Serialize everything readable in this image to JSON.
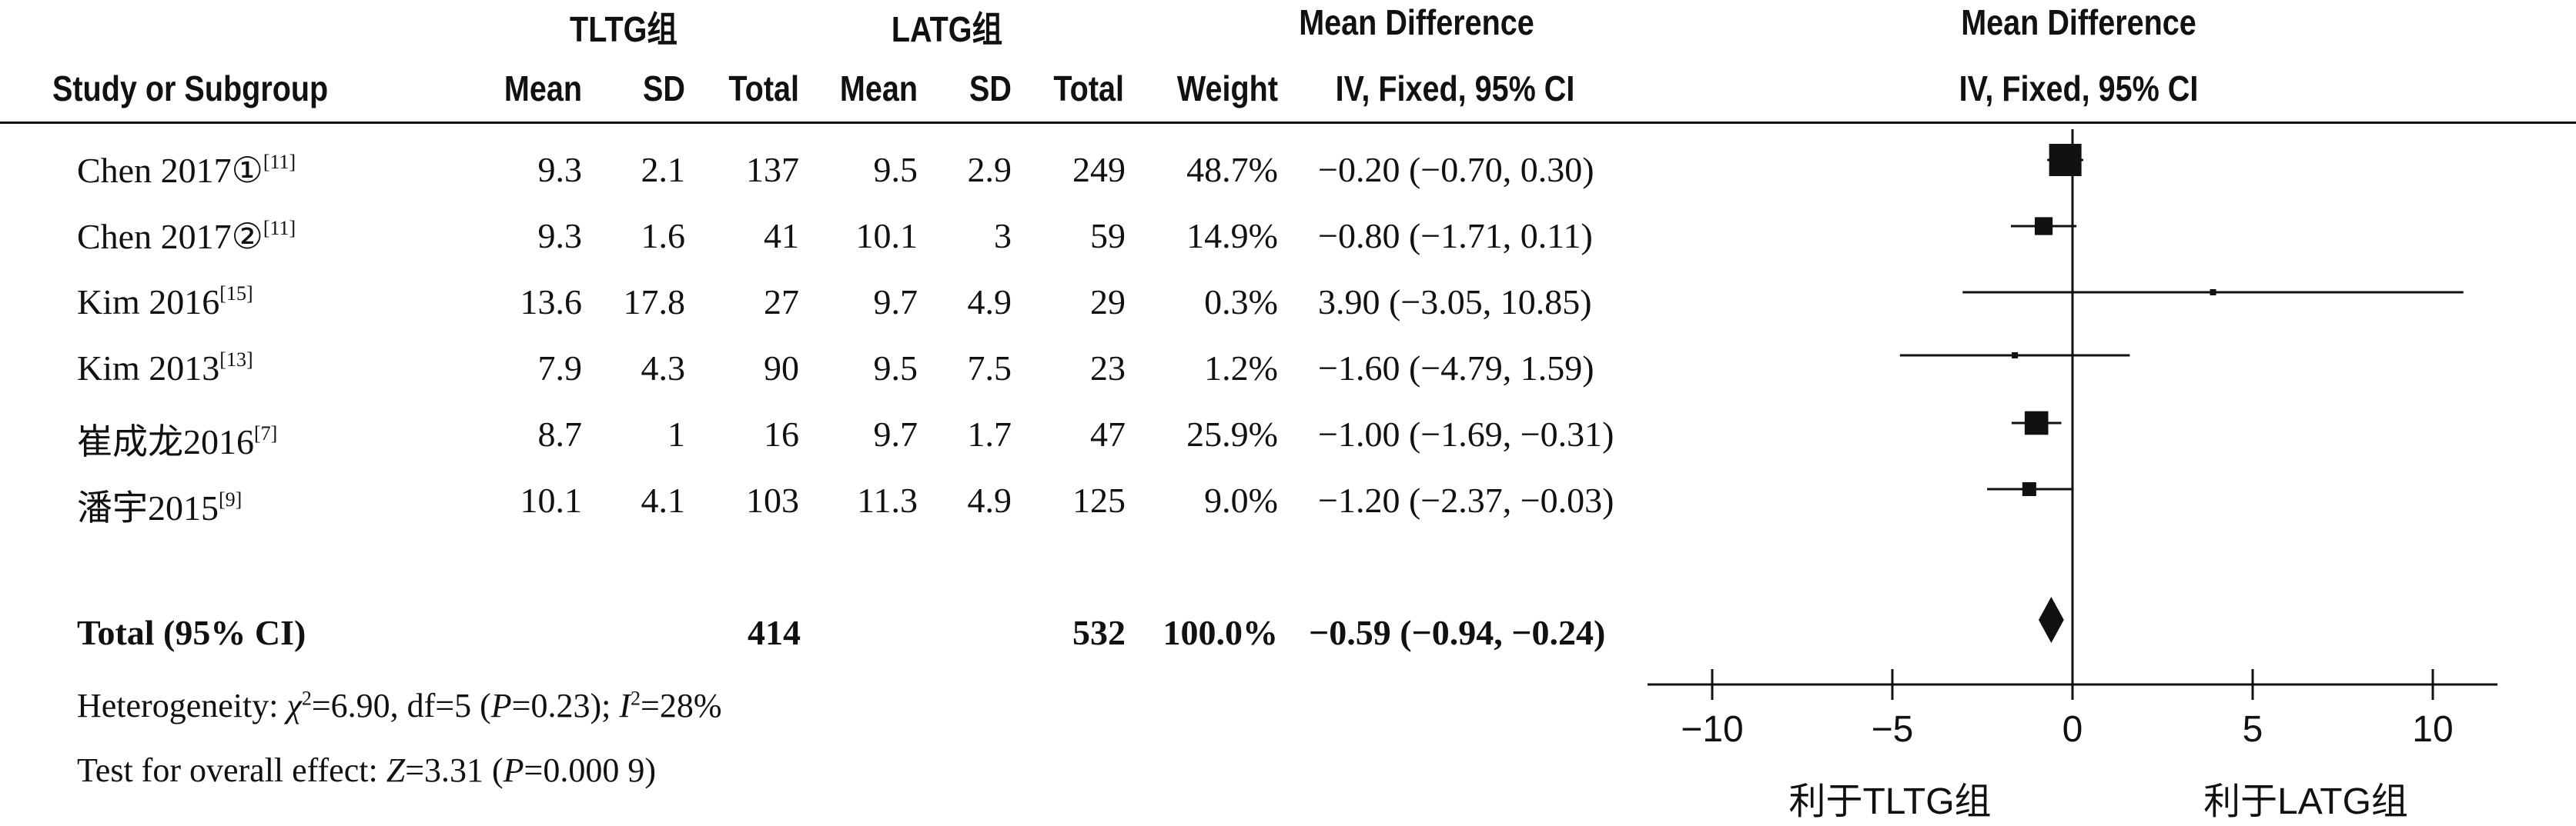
{
  "headers": {
    "group1": "TLTG组",
    "group2": "LATG组",
    "md_left": "Mean Difference",
    "md_right": "Mean Difference",
    "study_col": "Study or Subgroup",
    "mean1": "Mean",
    "sd1": "SD",
    "total1": "Total",
    "mean2": "Mean",
    "sd2": "SD",
    "total2": "Total",
    "weight": "Weight",
    "ci_left": "IV, Fixed, 95% CI",
    "ci_right": "IV, Fixed, 95% CI"
  },
  "studies": [
    {
      "name": "Chen 2017①",
      "ref": "[11]",
      "mean1": "9.3",
      "sd1": "2.1",
      "total1": "137",
      "mean2": "9.5",
      "sd2": "2.9",
      "total2": "249",
      "weight": "48.7%",
      "ci_text": "−0.20 (−0.70, 0.30)"
    },
    {
      "name": "Chen 2017②",
      "ref": "[11]",
      "mean1": "9.3",
      "sd1": "1.6",
      "total1": "41",
      "mean2": "10.1",
      "sd2": "3",
      "total2": "59",
      "weight": "14.9%",
      "ci_text": "−0.80 (−1.71, 0.11)"
    },
    {
      "name": "Kim 2016",
      "ref": "[15]",
      "mean1": "13.6",
      "sd1": "17.8",
      "total1": "27",
      "mean2": "9.7",
      "sd2": "4.9",
      "total2": "29",
      "weight": "0.3%",
      "ci_text": "3.90 (−3.05, 10.85)"
    },
    {
      "name": "Kim 2013",
      "ref": "[13]",
      "mean1": "7.9",
      "sd1": "4.3",
      "total1": "90",
      "mean2": "9.5",
      "sd2": "7.5",
      "total2": "23",
      "weight": "1.2%",
      "ci_text": "−1.60 (−4.79, 1.59)"
    },
    {
      "name": "崔成龙2016",
      "ref": "[7]",
      "mean1": "8.7",
      "sd1": "1",
      "total1": "16",
      "mean2": "9.7",
      "sd2": "1.7",
      "total2": "47",
      "weight": "25.9%",
      "ci_text": "−1.00 (−1.69, −0.31)"
    },
    {
      "name": "潘宇2015",
      "ref": "[9]",
      "mean1": "10.1",
      "sd1": "4.1",
      "total1": "103",
      "mean2": "11.3",
      "sd2": "4.9",
      "total2": "125",
      "weight": "9.0%",
      "ci_text": "−1.20 (−2.37, −0.03)"
    }
  ],
  "total": {
    "label": "Total (95% CI)",
    "total1": "414",
    "total2": "532",
    "weight": "100.0%",
    "ci_text": "−0.59 (−0.94, −0.24)"
  },
  "footer": {
    "het_prefix": "Heterogeneity: ",
    "chi": "χ",
    "chi_sup": "2",
    "het_mid": "=6.90, df=5 (",
    "p": "P",
    "het_p": "=0.23); ",
    "i": "I",
    "i_sup": "2",
    "het_end": "=28%",
    "test_prefix": "Test for overall effect: ",
    "z": "Z",
    "test_mid": "=3.31 (",
    "test_p": "P",
    "test_end": "=0.000 9)"
  },
  "chart_data": {
    "type": "forest",
    "xlim": [
      -12,
      12
    ],
    "ticks": [
      -10,
      -5,
      0,
      5,
      10
    ],
    "tick_labels": [
      "−10",
      "−5",
      "0",
      "5",
      "10"
    ],
    "favours_left": "利于TLTG组",
    "favours_right": "利于LATG组",
    "studies": [
      {
        "name": "Chen 2017①",
        "md": -0.2,
        "lo": -0.7,
        "hi": 0.3,
        "weight": 48.7
      },
      {
        "name": "Chen 2017②",
        "md": -0.8,
        "lo": -1.71,
        "hi": 0.11,
        "weight": 14.9
      },
      {
        "name": "Kim 2016",
        "md": 3.9,
        "lo": -3.05,
        "hi": 10.85,
        "weight": 0.3
      },
      {
        "name": "Kim 2013",
        "md": -1.6,
        "lo": -4.79,
        "hi": 1.59,
        "weight": 1.2
      },
      {
        "name": "崔成龙2016",
        "md": -1.0,
        "lo": -1.69,
        "hi": -0.31,
        "weight": 25.9
      },
      {
        "name": "潘宇2015",
        "md": -1.2,
        "lo": -2.37,
        "hi": -0.03,
        "weight": 9.0
      }
    ],
    "pooled": {
      "md": -0.59,
      "lo": -0.94,
      "hi": -0.24
    }
  }
}
